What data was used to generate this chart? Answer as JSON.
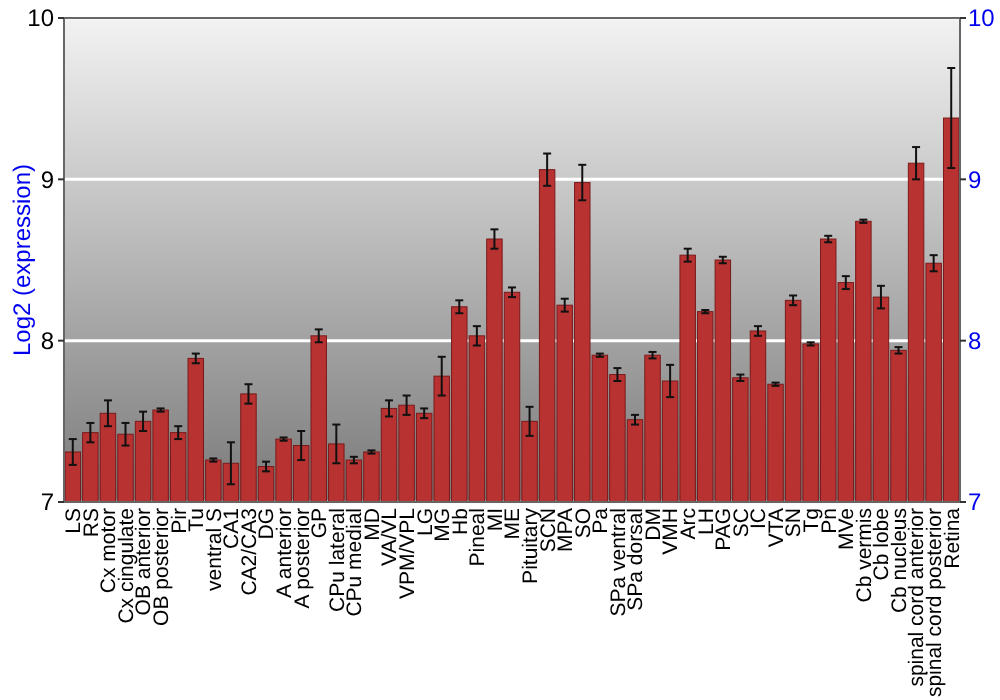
{
  "chart_data": {
    "type": "bar",
    "ylabel": "Log2 (expression)",
    "categories": [
      "LS",
      "RS",
      "Cx motor",
      "Cx cingulate",
      "OB anterior",
      "OB posterior",
      "Pir",
      "Tu",
      "ventral S",
      "CA1",
      "CA2/CA3",
      "DG",
      "A anterior",
      "A posterior",
      "GP",
      "CPu lateral",
      "CPu medial",
      "MD",
      "VA/VL",
      "VPM/VPL",
      "LG",
      "MG",
      "Hb",
      "Pineal",
      "MI",
      "ME",
      "Pituitary",
      "SCN",
      "MPA",
      "SO",
      "Pa",
      "SPa ventral",
      "SPa dorsal",
      "DM",
      "VMH",
      "Arc",
      "LH",
      "PAG",
      "SC",
      "IC",
      "VTA",
      "SN",
      "Tg",
      "Pn",
      "MVe",
      "Cb vermis",
      "Cb lobe",
      "Cb nucleus",
      "spinal cord anterior",
      "spinal cord posterior",
      "Retina"
    ],
    "values": [
      7.31,
      7.43,
      7.55,
      7.42,
      7.5,
      7.57,
      7.43,
      7.89,
      7.26,
      7.24,
      7.67,
      7.22,
      7.39,
      7.35,
      8.03,
      7.36,
      7.26,
      7.31,
      7.58,
      7.6,
      7.55,
      7.78,
      8.21,
      8.03,
      8.63,
      8.3,
      7.5,
      9.06,
      8.22,
      8.98,
      7.91,
      7.79,
      7.51,
      7.91,
      7.75,
      8.53,
      8.18,
      8.5,
      7.77,
      8.06,
      7.73,
      8.25,
      7.98,
      8.63,
      8.36,
      8.74,
      8.27,
      7.94,
      9.1,
      8.48,
      9.38
    ],
    "errors": [
      0.08,
      0.06,
      0.08,
      0.07,
      0.06,
      0.01,
      0.04,
      0.03,
      0.01,
      0.13,
      0.06,
      0.03,
      0.01,
      0.09,
      0.04,
      0.12,
      0.02,
      0.01,
      0.05,
      0.06,
      0.03,
      0.12,
      0.04,
      0.06,
      0.06,
      0.03,
      0.09,
      0.1,
      0.04,
      0.11,
      0.01,
      0.04,
      0.03,
      0.02,
      0.1,
      0.04,
      0.01,
      0.02,
      0.02,
      0.03,
      0.01,
      0.03,
      0.01,
      0.02,
      0.04,
      0.01,
      0.07,
      0.02,
      0.1,
      0.05,
      0.31
    ],
    "color": "#b83232",
    "ylim": [
      7,
      10
    ],
    "yticks": [
      7,
      8,
      9,
      10
    ],
    "y2lim": [
      7,
      10
    ],
    "y2ticks": [
      7,
      8,
      9,
      10
    ],
    "grid": "y"
  }
}
